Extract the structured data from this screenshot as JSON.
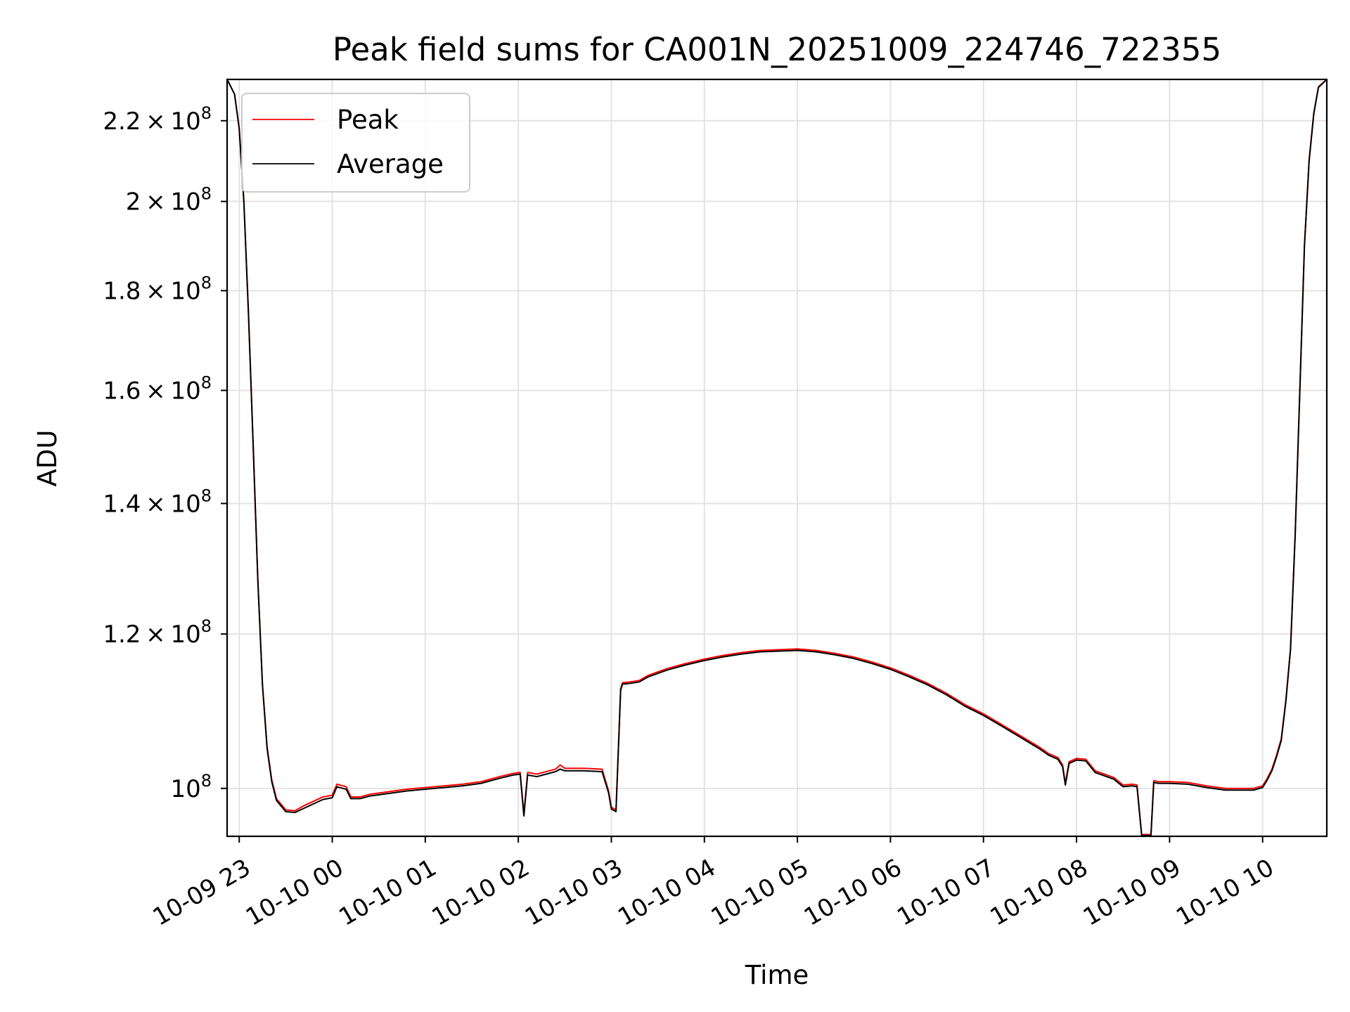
{
  "chart_data": {
    "type": "line",
    "title": "Peak field sums for CA001N_20251009_224746_722355",
    "xlabel": "Time",
    "ylabel": "ADU",
    "yscale": "log",
    "grid": true,
    "legend_position": "upper-left",
    "xlim": [
      22.87,
      34.69
    ],
    "ylim": [
      94500000,
      231000000
    ],
    "x_ticks": [
      {
        "value": 23,
        "label": "10-09 23"
      },
      {
        "value": 24,
        "label": "10-10 00"
      },
      {
        "value": 25,
        "label": "10-10 01"
      },
      {
        "value": 26,
        "label": "10-10 02"
      },
      {
        "value": 27,
        "label": "10-10 03"
      },
      {
        "value": 28,
        "label": "10-10 04"
      },
      {
        "value": 29,
        "label": "10-10 05"
      },
      {
        "value": 30,
        "label": "10-10 06"
      },
      {
        "value": 31,
        "label": "10-10 07"
      },
      {
        "value": 32,
        "label": "10-10 08"
      },
      {
        "value": 33,
        "label": "10-10 09"
      },
      {
        "value": 34,
        "label": "10-10 10"
      }
    ],
    "y_ticks": [
      {
        "value": 100000000,
        "mantissa": "",
        "exp": "8"
      },
      {
        "value": 120000000,
        "mantissa": "1.2",
        "exp": "8"
      },
      {
        "value": 140000000,
        "mantissa": "1.4",
        "exp": "8"
      },
      {
        "value": 160000000,
        "mantissa": "1.6",
        "exp": "8"
      },
      {
        "value": 180000000,
        "mantissa": "1.8",
        "exp": "8"
      },
      {
        "value": 200000000,
        "mantissa": "2",
        "exp": "8"
      },
      {
        "value": 220000000,
        "mantissa": "2.2",
        "exp": "8"
      }
    ],
    "series": [
      {
        "name": "Peak",
        "color": "#ff0000",
        "x": [
          22.87,
          22.95,
          23.0,
          23.05,
          23.1,
          23.15,
          23.2,
          23.25,
          23.3,
          23.35,
          23.4,
          23.5,
          23.6,
          23.7,
          23.8,
          23.9,
          24.0,
          24.05,
          24.15,
          24.2,
          24.3,
          24.4,
          24.6,
          24.8,
          25.0,
          25.2,
          25.4,
          25.6,
          25.8,
          25.95,
          26.02,
          26.06,
          26.1,
          26.2,
          26.3,
          26.4,
          26.45,
          26.5,
          26.7,
          26.9,
          26.97,
          27.0,
          27.05,
          27.1,
          27.12,
          27.2,
          27.3,
          27.4,
          27.6,
          27.8,
          28.0,
          28.2,
          28.4,
          28.6,
          28.8,
          29.0,
          29.2,
          29.4,
          29.6,
          29.8,
          30.0,
          30.2,
          30.4,
          30.6,
          30.8,
          31.0,
          31.2,
          31.4,
          31.6,
          31.7,
          31.8,
          31.85,
          31.88,
          31.92,
          32.0,
          32.1,
          32.2,
          32.4,
          32.5,
          32.6,
          32.65,
          32.7,
          32.8,
          32.83,
          32.88,
          33.0,
          33.2,
          33.4,
          33.6,
          33.75,
          33.9,
          34.0,
          34.05,
          34.1,
          34.15,
          34.2,
          34.25,
          34.3,
          34.35,
          34.4,
          34.45,
          34.5,
          34.55,
          34.6,
          34.69
        ],
        "values": [
          231000000,
          227000000,
          218000000,
          200000000,
          175000000,
          150000000,
          128000000,
          113000000,
          105000000,
          101000000,
          98800000,
          97500000,
          97400000,
          98000000,
          98500000,
          99000000,
          99200000,
          100500000,
          100200000,
          99000000,
          99000000,
          99300000,
          99600000,
          99900000,
          100100000,
          100300000,
          100500000,
          100800000,
          101400000,
          101800000,
          101900000,
          97000000,
          101900000,
          101700000,
          102000000,
          102300000,
          102800000,
          102400000,
          102400000,
          102300000,
          99700000,
          97800000,
          97500000,
          112500000,
          113300000,
          113400000,
          113600000,
          114300000,
          115200000,
          115900000,
          116500000,
          117000000,
          117400000,
          117700000,
          117800000,
          117900000,
          117700000,
          117300000,
          116800000,
          116100000,
          115300000,
          114300000,
          113200000,
          111900000,
          110400000,
          109200000,
          107800000,
          106400000,
          105000000,
          104200000,
          103700000,
          102800000,
          100600000,
          103200000,
          103600000,
          103500000,
          102100000,
          101300000,
          100400000,
          100500000,
          100400000,
          94700000,
          94700000,
          100900000,
          100800000,
          100800000,
          100700000,
          100300000,
          100000000,
          100000000,
          100000000,
          100300000,
          101200000,
          102300000,
          104000000,
          106000000,
          111000000,
          118000000,
          135000000,
          160000000,
          190000000,
          210000000,
          222000000,
          229000000,
          231000000
        ]
      },
      {
        "name": "Average",
        "color": "#000000",
        "x": [
          22.87,
          22.95,
          23.0,
          23.05,
          23.1,
          23.15,
          23.2,
          23.25,
          23.3,
          23.35,
          23.4,
          23.5,
          23.6,
          23.7,
          23.8,
          23.9,
          24.0,
          24.05,
          24.15,
          24.2,
          24.3,
          24.4,
          24.6,
          24.8,
          25.0,
          25.2,
          25.4,
          25.6,
          25.8,
          25.95,
          26.02,
          26.06,
          26.1,
          26.2,
          26.3,
          26.4,
          26.45,
          26.5,
          26.7,
          26.9,
          26.97,
          27.0,
          27.05,
          27.1,
          27.12,
          27.2,
          27.3,
          27.4,
          27.6,
          27.8,
          28.0,
          28.2,
          28.4,
          28.6,
          28.8,
          29.0,
          29.2,
          29.4,
          29.6,
          29.8,
          30.0,
          30.2,
          30.4,
          30.6,
          30.8,
          31.0,
          31.2,
          31.4,
          31.6,
          31.7,
          31.8,
          31.85,
          31.88,
          31.92,
          32.0,
          32.1,
          32.2,
          32.4,
          32.5,
          32.6,
          32.65,
          32.7,
          32.8,
          32.83,
          32.88,
          33.0,
          33.2,
          33.4,
          33.6,
          33.75,
          33.9,
          34.0,
          34.05,
          34.1,
          34.15,
          34.2,
          34.25,
          34.3,
          34.35,
          34.4,
          34.45,
          34.5,
          34.55,
          34.6,
          34.69
        ],
        "values": [
          231000000,
          227000000,
          218000000,
          200000000,
          175000000,
          150000000,
          128000000,
          113000000,
          104800000,
          100800000,
          98600000,
          97300000,
          97200000,
          97700000,
          98200000,
          98700000,
          98900000,
          100200000,
          99900000,
          98800000,
          98800000,
          99100000,
          99400000,
          99700000,
          99900000,
          100100000,
          100300000,
          100600000,
          101200000,
          101600000,
          101700000,
          96800000,
          101600000,
          101400000,
          101700000,
          102000000,
          102300000,
          102100000,
          102100000,
          102000000,
          99500000,
          97600000,
          97300000,
          112300000,
          113100000,
          113200000,
          113400000,
          114100000,
          115000000,
          115700000,
          116300000,
          116800000,
          117200000,
          117500000,
          117600000,
          117700000,
          117500000,
          117100000,
          116600000,
          115900000,
          115100000,
          114100000,
          113000000,
          111700000,
          110200000,
          109000000,
          107600000,
          106200000,
          104800000,
          104000000,
          103500000,
          102600000,
          100400000,
          103000000,
          103400000,
          103300000,
          101900000,
          101100000,
          100200000,
          100300000,
          100200000,
          94600000,
          94600000,
          100700000,
          100600000,
          100600000,
          100500000,
          100100000,
          99800000,
          99800000,
          99800000,
          100100000,
          101000000,
          102100000,
          103800000,
          105800000,
          110800000,
          117800000,
          134800000,
          159800000,
          189800000,
          209800000,
          221800000,
          228800000,
          231000000
        ]
      }
    ]
  }
}
